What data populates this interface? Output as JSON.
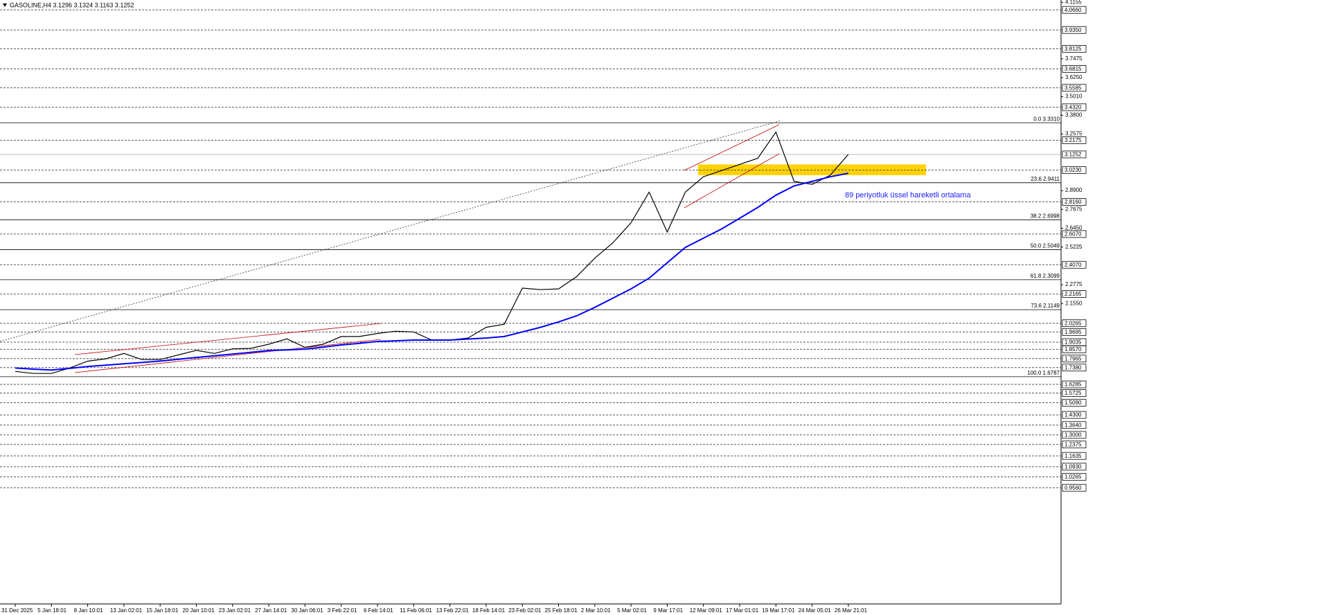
{
  "chart_data": {
    "type": "line",
    "title": "GASOLINE,H4  3.1296 3.1324 3.1163 3.1252",
    "annotation": "89 periyotluk üssel hareketli ortalama",
    "categories": [
      "31 Dec 2025",
      null,
      "5 Jan 18:01",
      null,
      "8 Jan 10:01",
      null,
      "13 Jan 02:01",
      null,
      "15 Jan 18:01",
      null,
      "20 Jan 10:01",
      null,
      "23 Jan 02:01",
      null,
      "27 Jan 14:01",
      null,
      "30 Jan 06:01",
      null,
      "3 Feb 22:01",
      null,
      "6 Feb 14:01",
      null,
      "11 Feb 06:01",
      null,
      "13 Feb 22:01",
      null,
      "18 Feb 14:01",
      null,
      "23 Feb 02:01",
      null,
      "25 Feb 18:01",
      null,
      "2 Mar 10:01",
      null,
      "5 Mar 02:01",
      null,
      "9 Mar 17:01",
      null,
      "12 Mar 09:01",
      null,
      "17 Mar 01:01",
      null,
      "19 Mar 17:01",
      null,
      "24 Mar 05:01",
      null,
      "26 Mar 21:01"
    ],
    "series": [
      {
        "name": "GASOLINE",
        "color": "#000000",
        "values": [
          1.713,
          1.7,
          1.7,
          1.735,
          1.78,
          1.795,
          1.83,
          1.79,
          1.79,
          1.82,
          1.85,
          1.83,
          1.86,
          1.863,
          1.89,
          1.925,
          1.87,
          1.89,
          1.94,
          1.94,
          1.96,
          1.975,
          1.97,
          1.917,
          1.917,
          1.93,
          2.0,
          2.02,
          2.255,
          2.245,
          2.25,
          2.33,
          2.45,
          2.55,
          2.68,
          2.88,
          2.62,
          2.88,
          2.98,
          3.02,
          3.06,
          3.1,
          3.27,
          2.95,
          2.93,
          2.99,
          3.1252
        ]
      },
      {
        "name": "EMA 89",
        "color": "#0000ff",
        "values": [
          1.735,
          1.728,
          1.722,
          1.733,
          1.745,
          1.754,
          1.763,
          1.771,
          1.78,
          1.792,
          1.804,
          1.815,
          1.826,
          1.837,
          1.849,
          1.853,
          1.858,
          1.871,
          1.885,
          1.896,
          1.908,
          1.912,
          1.917,
          1.917,
          1.917,
          1.924,
          1.93,
          1.94,
          1.97,
          2.0,
          2.035,
          2.075,
          2.13,
          2.19,
          2.25,
          2.32,
          2.42,
          2.52,
          2.58,
          2.64,
          2.71,
          2.78,
          2.86,
          2.92,
          2.95,
          2.98,
          3.003
        ]
      }
    ],
    "ylim": [
      0.2,
      4.13
    ],
    "yticks": [
      4.1155,
      3.7475,
      {
        "value": 3.625,
        "label": "3.6250"
      },
      {
        "value": 3.501,
        "label": "3.5010"
      },
      {
        "value": 3.38,
        "label": "3.3800"
      },
      3.2575,
      {
        "value": 2.89,
        "label": "2.8900"
      },
      2.7675,
      {
        "value": 2.645,
        "label": "2.6450"
      },
      2.5225,
      2.2775,
      {
        "value": 2.155,
        "label": "2.1550"
      }
    ],
    "levels": [
      {
        "value": 4.066,
        "label": "4.0660"
      },
      {
        "value": 3.935,
        "label": "3.9350"
      },
      3.8125,
      3.6815,
      3.5585,
      {
        "value": 3.432,
        "label": "3.4320"
      },
      3.2175,
      {
        "value": 3.023,
        "label": "3.0230"
      },
      {
        "value": 2.816,
        "label": "2.8160"
      },
      {
        "value": 2.607,
        "label": "2.6070"
      },
      {
        "value": 2.407,
        "label": "2.4070"
      },
      2.2165,
      2.0265,
      1.9695,
      1.9035,
      {
        "value": 1.857,
        "label": "1.8570"
      },
      1.7965,
      {
        "value": 1.738,
        "label": "1.7380"
      },
      1.6285,
      1.5725,
      {
        "value": 1.509,
        "label": "1.5090"
      },
      {
        "value": 1.43,
        "label": "1.4300"
      },
      {
        "value": 1.364,
        "label": "1.3640"
      },
      {
        "value": 1.3,
        "label": "1.3000"
      },
      1.2375,
      1.1635,
      {
        "value": 1.093,
        "label": "1.0930"
      },
      1.0265,
      {
        "value": 0.956,
        "label": "0.9560"
      }
    ],
    "current_price": 3.1252,
    "fib_levels": [
      {
        "value": 3.331,
        "label": "0.0 3.3310"
      },
      {
        "value": 2.9411,
        "label": "23.6 2.9411"
      },
      {
        "value": 2.6998,
        "label": "38.2 2.6998"
      },
      {
        "value": 2.5049,
        "label": "50.0 2.5049"
      },
      {
        "value": 2.3099,
        "label": "61.8 2.3099"
      },
      {
        "value": 2.1149,
        "label": "73.6 2.1149"
      },
      {
        "value": 1.6787,
        "label": "100.0 1.6787"
      }
    ],
    "zone": {
      "color": "#ffd200",
      "range": [
        2.99,
        3.06
      ]
    },
    "grid": true
  }
}
